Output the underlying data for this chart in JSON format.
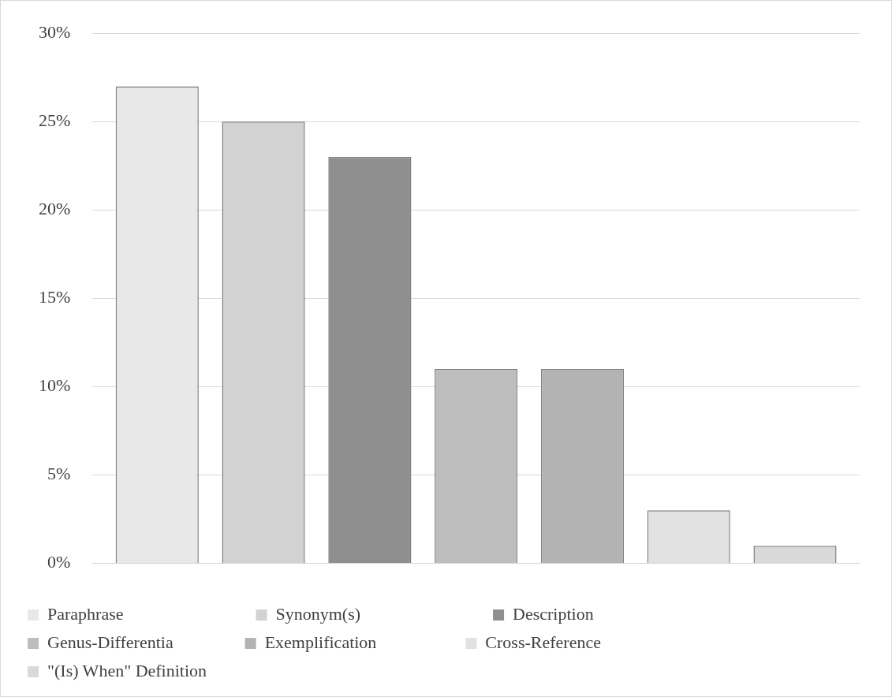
{
  "chart_data": {
    "type": "bar",
    "categories": [
      null
    ],
    "series": [
      {
        "name": "Paraphrase",
        "color": "#e8e8e8",
        "values": [
          27
        ]
      },
      {
        "name": "Synonym(s)",
        "color": "#d2d2d2",
        "values": [
          25
        ]
      },
      {
        "name": "Description",
        "color": "#8f8f8f",
        "values": [
          23
        ]
      },
      {
        "name": "Genus-Differentia",
        "color": "#bdbdbd",
        "values": [
          11
        ]
      },
      {
        "name": "Exemplification",
        "color": "#b3b3b3",
        "values": [
          11
        ]
      },
      {
        "name": "Cross-Reference",
        "color": "#e2e2e2",
        "values": [
          3
        ]
      },
      {
        "name": "\"(Is) When\" Definition",
        "color": "#d9d9d9",
        "values": [
          1
        ]
      }
    ],
    "ylim": [
      0,
      30
    ],
    "yticks": [
      {
        "value": 0,
        "label": "0%"
      },
      {
        "value": 5,
        "label": "5%"
      },
      {
        "value": 10,
        "label": "10%"
      },
      {
        "value": 15,
        "label": "15%"
      },
      {
        "value": 20,
        "label": "20%"
      },
      {
        "value": 25,
        "label": "25%"
      },
      {
        "value": 30,
        "label": "30%"
      }
    ],
    "grid": "y",
    "legend": "bottom"
  }
}
